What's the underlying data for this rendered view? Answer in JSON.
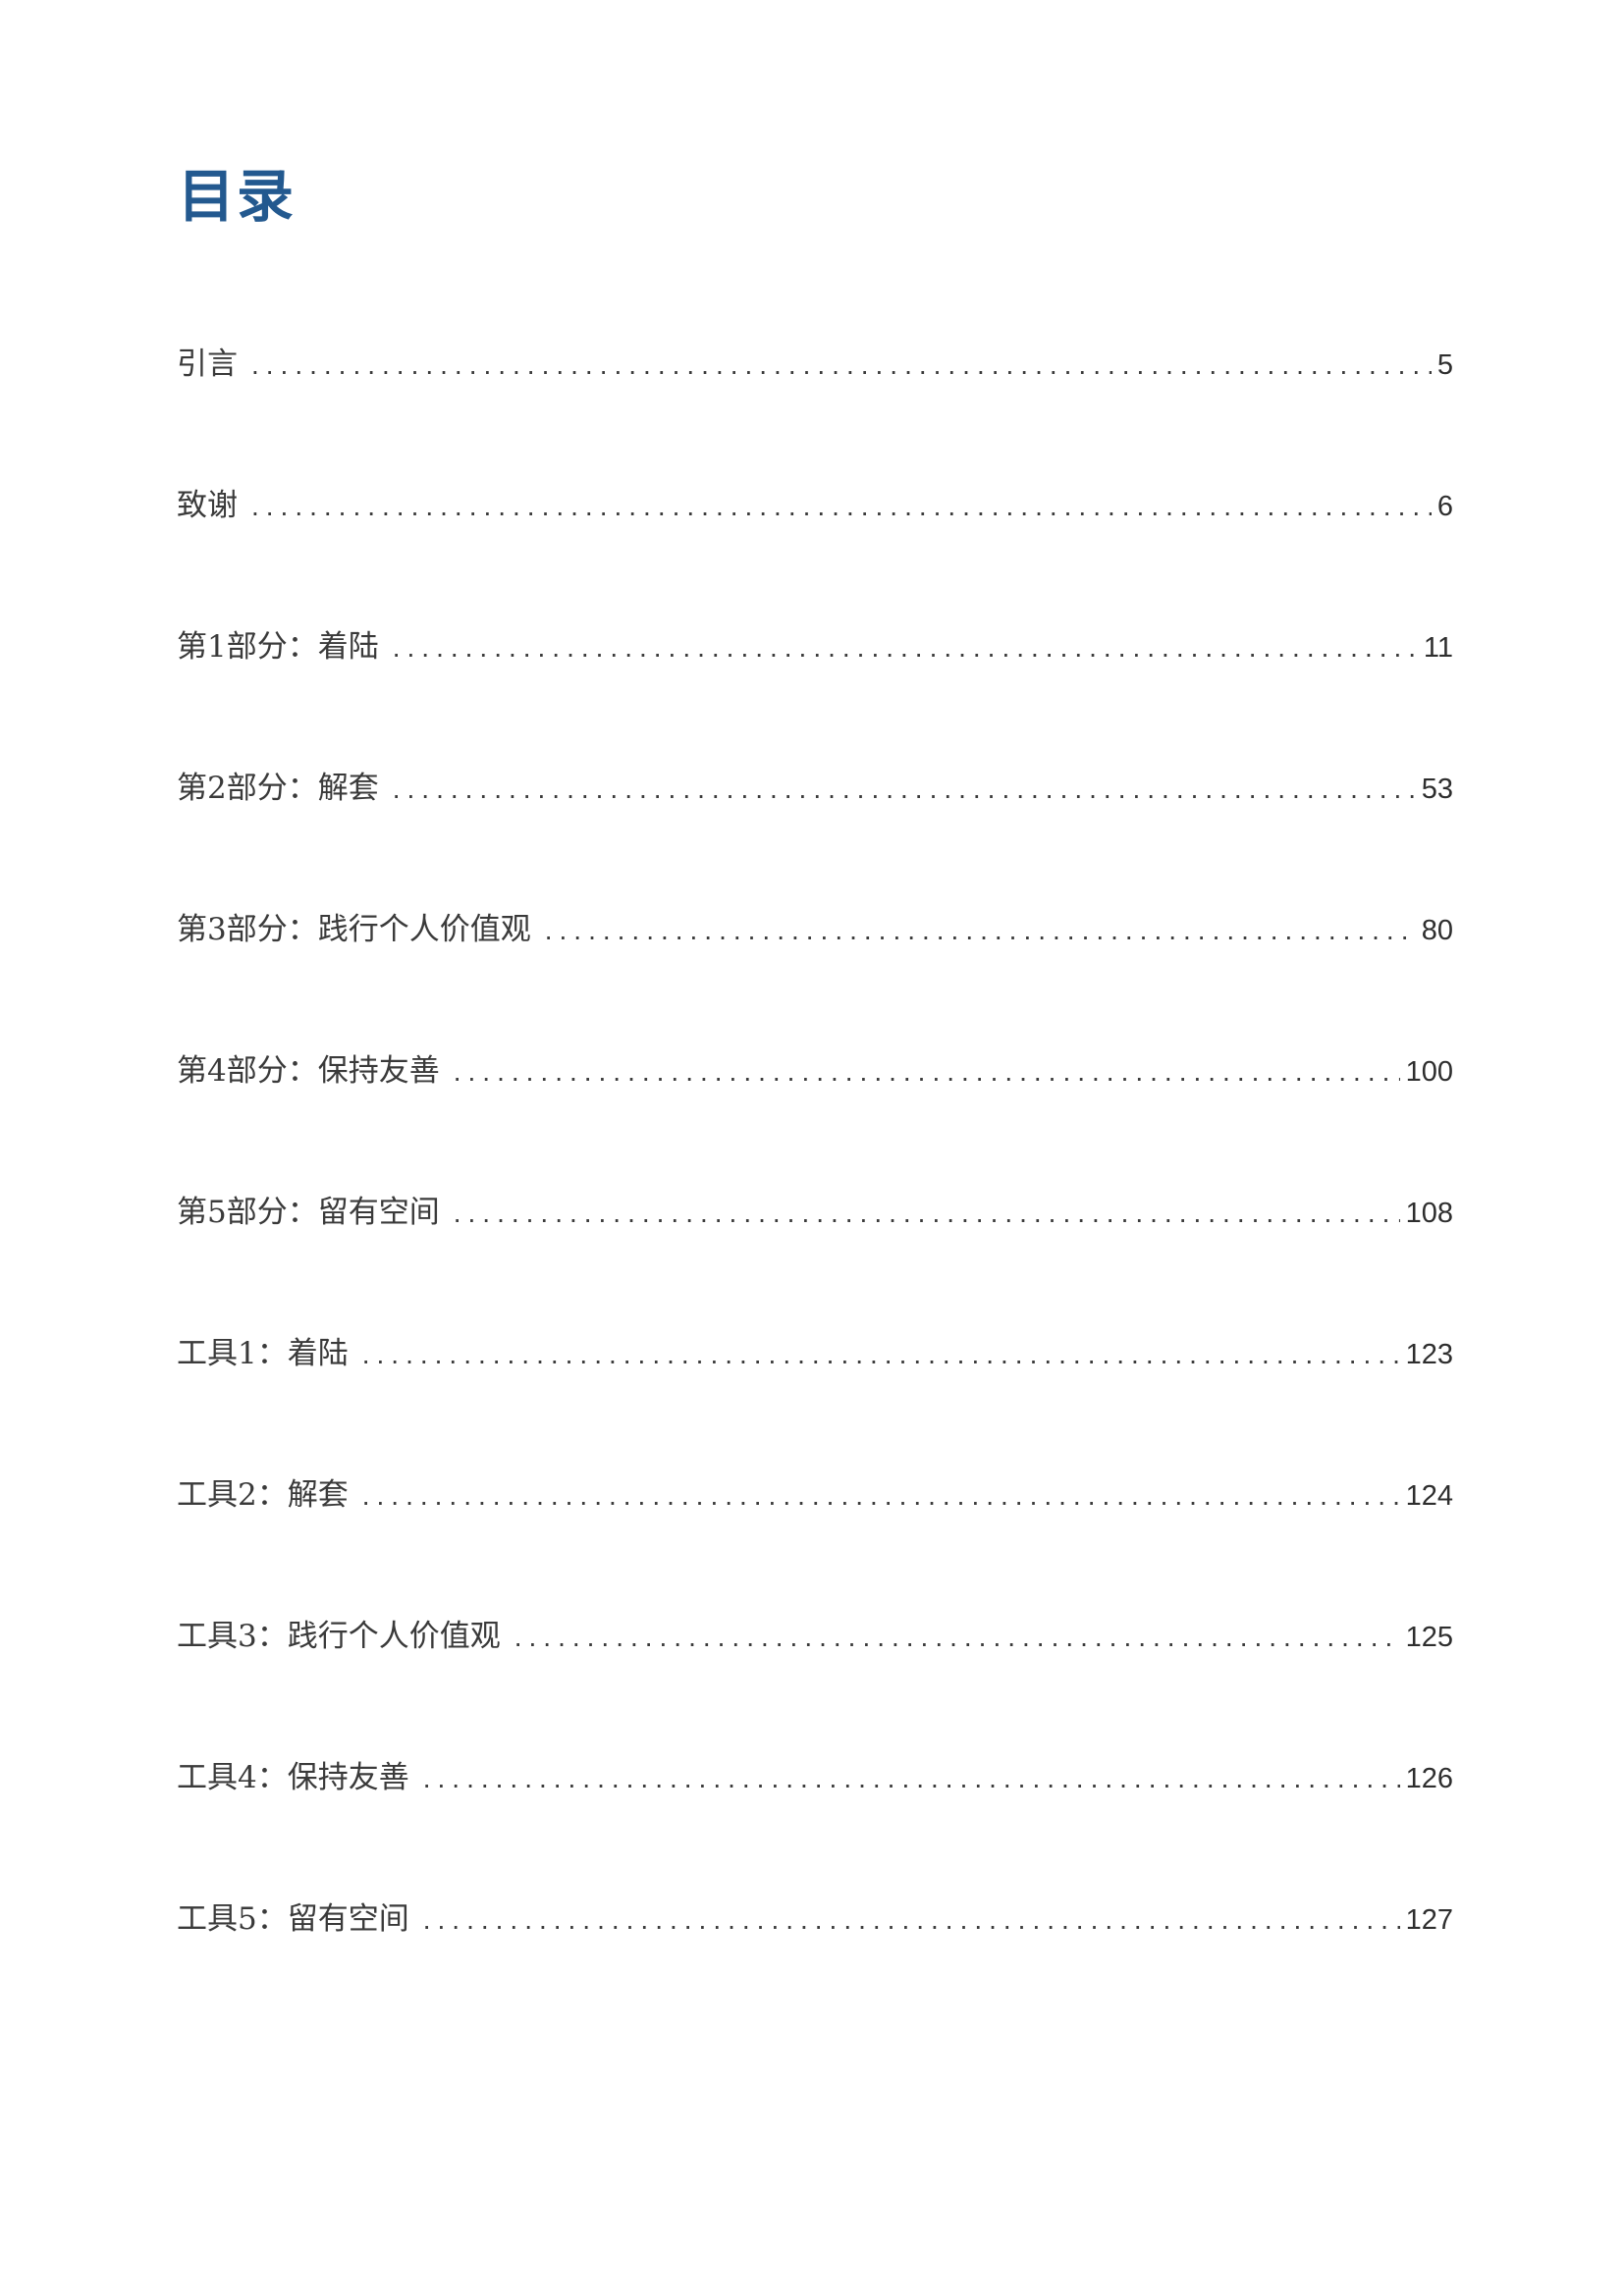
{
  "title": "目录",
  "toc": [
    {
      "label": "引言",
      "page": "5"
    },
    {
      "label": "致谢",
      "page": "6"
    },
    {
      "label": "第1部分：着陆",
      "page": "11"
    },
    {
      "label": "第2部分：解套",
      "page": "53"
    },
    {
      "label": "第3部分：践行个人价值观",
      "page": "80"
    },
    {
      "label": "第4部分：保持友善",
      "page": "100"
    },
    {
      "label": "第5部分：留有空间",
      "page": "108"
    },
    {
      "label": "工具1：着陆",
      "page": "123"
    },
    {
      "label": "工具2：解套",
      "page": "124"
    },
    {
      "label": "工具3：践行个人价值观",
      "page": "125"
    },
    {
      "label": "工具4：保持友善",
      "page": "126"
    },
    {
      "label": "工具5：留有空间",
      "page": "127"
    }
  ],
  "colors": {
    "title": "#23598f",
    "text": "#3a3a3a"
  }
}
